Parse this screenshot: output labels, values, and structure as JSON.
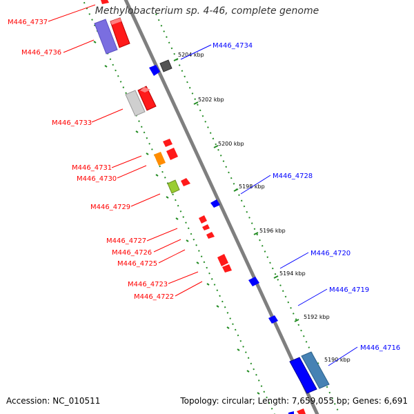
{
  "title": "Methylobacterium sp. 4-46, complete genome",
  "footer": {
    "accession": "Accession: NC_010511",
    "topology": "Topology: circular; Length: 7,659,055 bp; Genes: 6,691"
  },
  "colors": {
    "red": "#ff0000",
    "blue": "#0000ff",
    "backbone": "#888888",
    "tick_green": "#228b22"
  },
  "tick_labels": [
    "5204 kbp",
    "5202 kbp",
    "5200 kbp",
    "5198 kbp",
    "5196 kbp",
    "5194 kbp",
    "5192 kbp",
    "5190 kbp"
  ],
  "left_labels": [
    "M446_4737",
    "M446_4736",
    "M446_4733",
    "M446_4731",
    "M446_4730",
    "M446_4729",
    "M446_4727",
    "M446_4726",
    "M446_4725",
    "M446_4723",
    "M446_4722"
  ],
  "right_labels": [
    "M446_4734",
    "M446_4728",
    "M446_4720",
    "M446_4719",
    "M446_4716"
  ]
}
